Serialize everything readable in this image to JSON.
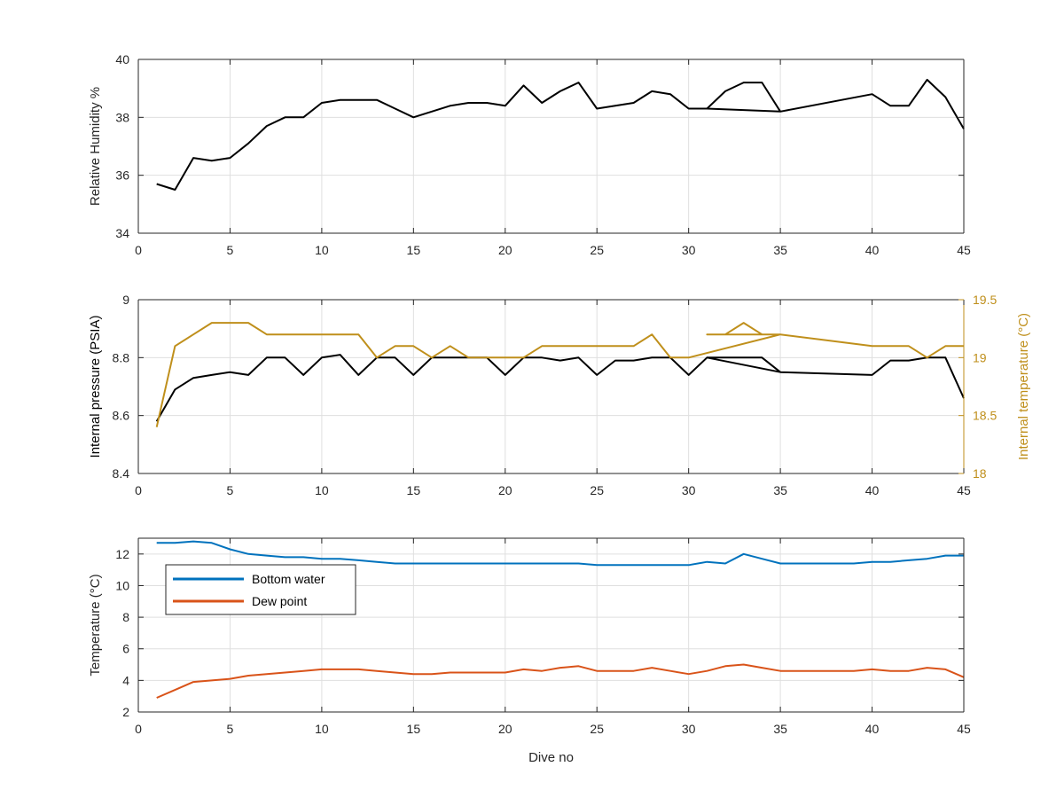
{
  "chart_data": [
    {
      "type": "line",
      "xlabel": "",
      "ylabel": "Relative Humidity %",
      "xlim": [
        0,
        45
      ],
      "ylim": [
        34,
        40
      ],
      "xticks": [
        0,
        5,
        10,
        15,
        20,
        25,
        30,
        35,
        40,
        45
      ],
      "yticks": [
        34,
        36,
        38,
        40
      ],
      "grid": true,
      "series": [
        {
          "color": "#000000",
          "x": [
            1,
            2,
            3,
            4,
            5,
            6,
            7,
            8,
            9,
            10,
            11,
            12,
            13,
            14,
            15,
            16,
            17,
            18,
            19,
            20,
            21,
            22,
            23,
            24,
            25,
            26,
            27,
            28,
            29,
            30,
            31,
            32,
            33,
            34,
            35,
            31,
            35,
            40,
            41,
            42,
            43,
            44,
            45
          ],
          "y": [
            35.7,
            35.5,
            36.6,
            36.5,
            36.6,
            37.1,
            37.7,
            38.0,
            38.0,
            38.5,
            38.6,
            38.6,
            38.6,
            38.3,
            38.0,
            38.2,
            38.4,
            38.5,
            38.5,
            38.4,
            39.1,
            38.5,
            38.9,
            39.2,
            38.3,
            38.4,
            38.5,
            38.9,
            38.8,
            38.3,
            38.3,
            38.9,
            39.2,
            39.2,
            38.2,
            38.3,
            38.2,
            38.8,
            38.4,
            38.4,
            39.3,
            38.7,
            37.6
          ]
        }
      ]
    },
    {
      "type": "line",
      "xlabel": "",
      "ylabel": "Internal pressure (PSIA)",
      "y2label": "Internal temperature (°C)",
      "xlim": [
        0,
        45
      ],
      "ylim": [
        8.4,
        9.0
      ],
      "y2lim": [
        18.0,
        19.5
      ],
      "xticks": [
        0,
        5,
        10,
        15,
        20,
        25,
        30,
        35,
        40,
        45
      ],
      "yticks": [
        8.4,
        8.6,
        8.8,
        9.0
      ],
      "y2ticks": [
        18,
        18.5,
        19,
        19.5
      ],
      "grid": true,
      "series": [
        {
          "axis": "left",
          "color": "#000000",
          "x": [
            1,
            2,
            3,
            4,
            5,
            6,
            7,
            8,
            9,
            10,
            11,
            12,
            13,
            14,
            15,
            16,
            17,
            18,
            19,
            20,
            21,
            22,
            23,
            24,
            25,
            26,
            27,
            28,
            29,
            30,
            31,
            32,
            33,
            34,
            35,
            31,
            35,
            40,
            41,
            42,
            43,
            44,
            45
          ],
          "y": [
            8.58,
            8.69,
            8.73,
            8.74,
            8.75,
            8.74,
            8.8,
            8.8,
            8.74,
            8.8,
            8.81,
            8.74,
            8.8,
            8.8,
            8.74,
            8.8,
            8.8,
            8.8,
            8.8,
            8.74,
            8.8,
            8.8,
            8.79,
            8.8,
            8.74,
            8.79,
            8.79,
            8.8,
            8.8,
            8.74,
            8.8,
            8.8,
            8.8,
            8.8,
            8.75,
            8.8,
            8.75,
            8.74,
            8.79,
            8.79,
            8.8,
            8.8,
            8.66
          ]
        },
        {
          "axis": "right",
          "color": "#BF8F1B",
          "x": [
            1,
            2,
            3,
            4,
            5,
            6,
            7,
            8,
            9,
            10,
            11,
            12,
            13,
            14,
            15,
            16,
            17,
            18,
            19,
            20,
            21,
            22,
            23,
            24,
            25,
            26,
            27,
            28,
            29,
            30,
            35,
            31,
            32,
            33,
            34,
            35,
            40,
            41,
            42,
            43,
            44,
            45
          ],
          "y": [
            18.4,
            19.1,
            19.2,
            19.3,
            19.3,
            19.3,
            19.2,
            19.2,
            19.2,
            19.2,
            19.2,
            19.2,
            19.0,
            19.1,
            19.1,
            19.0,
            19.1,
            19.0,
            19.0,
            19.0,
            19.0,
            19.1,
            19.1,
            19.1,
            19.1,
            19.1,
            19.1,
            19.2,
            19.0,
            19.0,
            19.2,
            19.2,
            19.2,
            19.3,
            19.2,
            19.2,
            19.1,
            19.1,
            19.1,
            19.0,
            19.1,
            19.1
          ]
        }
      ]
    },
    {
      "type": "line",
      "xlabel": "Dive no",
      "ylabel": "Temperature (°C)",
      "xlim": [
        0,
        45
      ],
      "ylim": [
        2,
        13
      ],
      "xticks": [
        0,
        5,
        10,
        15,
        20,
        25,
        30,
        35,
        40,
        45
      ],
      "yticks": [
        2,
        4,
        6,
        8,
        10,
        12
      ],
      "grid": true,
      "legend": "top-left",
      "series": [
        {
          "name": "Bottom water",
          "color": "#0072BD",
          "x": [
            1,
            2,
            3,
            4,
            5,
            6,
            7,
            8,
            9,
            10,
            11,
            12,
            13,
            14,
            15,
            16,
            17,
            18,
            19,
            20,
            21,
            22,
            23,
            24,
            25,
            26,
            27,
            28,
            29,
            30,
            31,
            32,
            33,
            34,
            35,
            36,
            37,
            38,
            39,
            40,
            41,
            42,
            43,
            44,
            45
          ],
          "y": [
            12.7,
            12.7,
            12.8,
            12.7,
            12.3,
            12.0,
            11.9,
            11.8,
            11.8,
            11.7,
            11.7,
            11.6,
            11.5,
            11.4,
            11.4,
            11.4,
            11.4,
            11.4,
            11.4,
            11.4,
            11.4,
            11.4,
            11.4,
            11.4,
            11.3,
            11.3,
            11.3,
            11.3,
            11.3,
            11.3,
            11.5,
            11.4,
            12.0,
            11.7,
            11.4,
            11.4,
            11.4,
            11.4,
            11.4,
            11.5,
            11.5,
            11.6,
            11.7,
            11.9,
            11.9
          ]
        },
        {
          "name": "Dew point",
          "color": "#D95319",
          "x": [
            1,
            2,
            3,
            4,
            5,
            6,
            7,
            8,
            9,
            10,
            11,
            12,
            13,
            14,
            15,
            16,
            17,
            18,
            19,
            20,
            21,
            22,
            23,
            24,
            25,
            26,
            27,
            28,
            29,
            30,
            31,
            32,
            33,
            34,
            35,
            36,
            37,
            38,
            39,
            40,
            41,
            42,
            43,
            44,
            45
          ],
          "y": [
            2.9,
            3.4,
            3.9,
            4.0,
            4.1,
            4.3,
            4.4,
            4.5,
            4.6,
            4.7,
            4.7,
            4.7,
            4.6,
            4.5,
            4.4,
            4.4,
            4.5,
            4.5,
            4.5,
            4.5,
            4.7,
            4.6,
            4.8,
            4.9,
            4.6,
            4.6,
            4.6,
            4.8,
            4.6,
            4.4,
            4.6,
            4.9,
            5.0,
            4.8,
            4.6,
            4.6,
            4.6,
            4.6,
            4.6,
            4.7,
            4.6,
            4.6,
            4.8,
            4.7,
            4.2
          ]
        }
      ]
    }
  ]
}
